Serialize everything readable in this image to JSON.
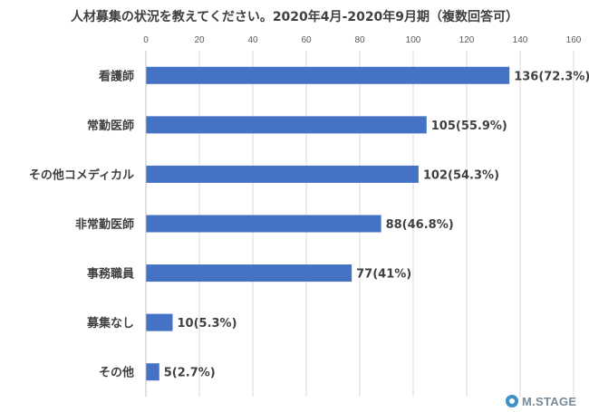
{
  "title": "人材募集の状況を教えてください。2020年4月-2020年9月期（複数回答可）",
  "chart_data": {
    "type": "bar",
    "orientation": "horizontal",
    "title": "人材募集の状況を教えてください。2020年4月-2020年9月期（複数回答可）",
    "categories": [
      "看護師",
      "常勤医師",
      "その他コメディカル",
      "非常勤医師",
      "事務職員",
      "募集なし",
      "その他"
    ],
    "values": [
      136,
      105,
      102,
      88,
      77,
      10,
      5
    ],
    "data_labels": [
      "136(72.3%)",
      "105(55.9%)",
      "102(54.3%)",
      "88(46.8%)",
      "77(41%)",
      "10(5.3%)",
      "5(2.7%)"
    ],
    "xlim": [
      0,
      160
    ],
    "x_ticks": [
      0,
      20,
      40,
      60,
      80,
      100,
      120,
      140,
      160
    ],
    "x_axis_position": "top",
    "grid": true,
    "bar_color": "#4472c4"
  },
  "logo": {
    "text": "M.STAGE",
    "color": "#3f8fc8"
  }
}
